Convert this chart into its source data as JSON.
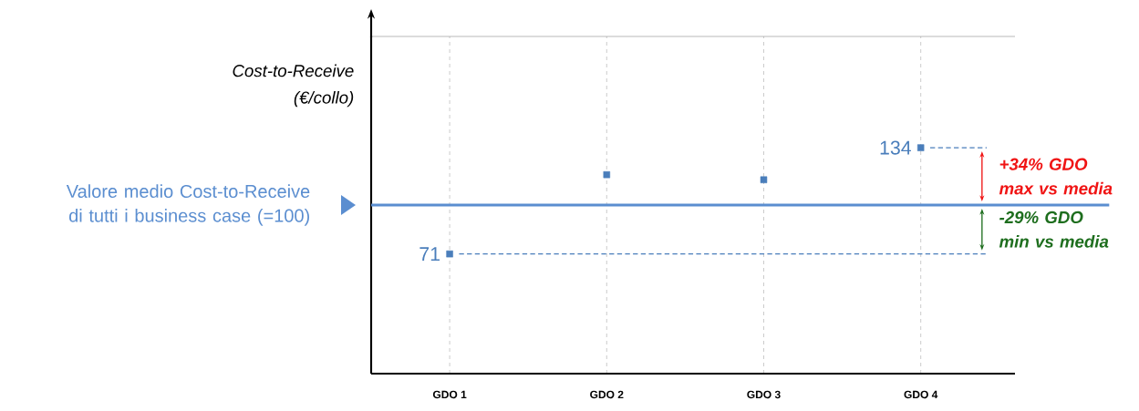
{
  "chart_data": {
    "type": "scatter",
    "categories": [
      "GDO 1",
      "GDO 2",
      "GDO 3",
      "GDO 4"
    ],
    "ylabel": "Cost-to-Receive (€/collo)",
    "series": [
      {
        "color": "#4a7ebb",
        "values": [
          71,
          118,
          115,
          134
        ],
        "value_labels": [
          "71",
          null,
          null,
          "134"
        ]
      }
    ],
    "marker": "square",
    "ylim": [
      0,
      200
    ],
    "yticks": [
      {
        "value": 200,
        "label": null
      }
    ],
    "tick_labels": "x",
    "grid": true,
    "ref_lines": [
      {
        "axis": "y",
        "value": 100,
        "label": "Valore medio Cost-to-Receive di tutti i business case (=100)",
        "color": "#5b8ed0",
        "line_style": "solid"
      },
      {
        "axis": "y",
        "value": 134,
        "color": "#4a7ebb",
        "line_style": "dashed"
      },
      {
        "axis": "y",
        "value": 71,
        "color": "#4a7ebb",
        "line_style": "dashed"
      }
    ],
    "annotations": [
      "+34% GDO max vs media",
      "-29% GDO min vs media"
    ]
  }
}
